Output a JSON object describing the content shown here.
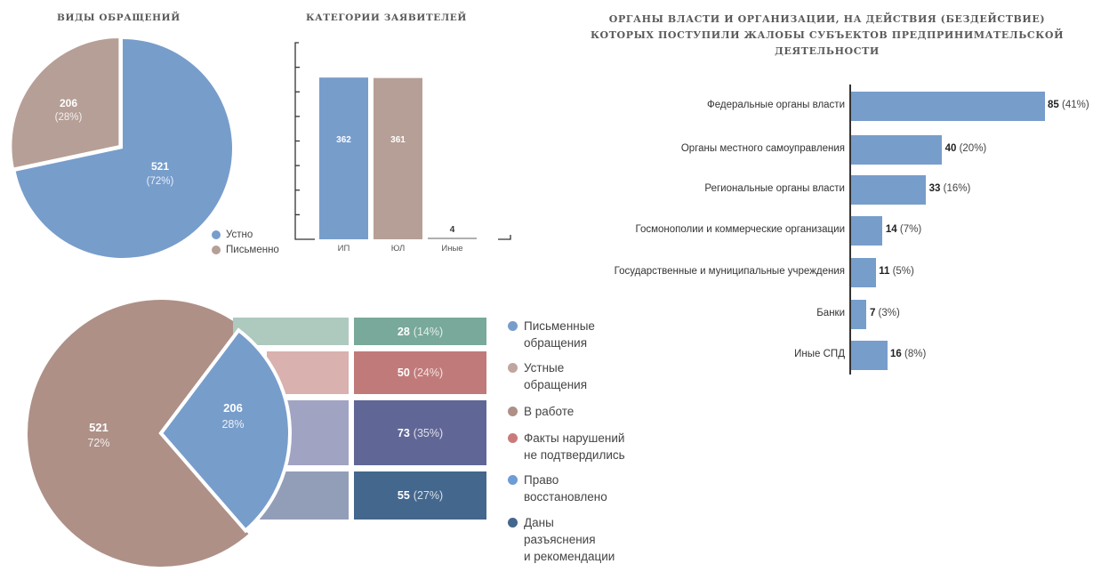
{
  "chart_data": [
    {
      "id": "types",
      "type": "pie",
      "title": "ВИДЫ ОБРАЩЕНИЙ",
      "slices": [
        {
          "label": "Устно",
          "value": 521,
          "pct_label": "(72%)",
          "color": "#779dcb"
        },
        {
          "label": "Письменно",
          "value": 206,
          "pct_label": "(28%)",
          "color": "#b69f96"
        }
      ],
      "legend_position": "bottom-right"
    },
    {
      "id": "applicants",
      "type": "bar",
      "title": "КАТЕГОРИИ ЗАЯВИТЕЛЕЙ",
      "categories": [
        "ИП",
        "ЮЛ",
        "Иные"
      ],
      "values": [
        362,
        361,
        4
      ],
      "colors": [
        "#779dcb",
        "#b69f96",
        "#b0b0b0"
      ],
      "ylim": [
        0,
        440
      ],
      "y_ticks": 8,
      "grid": false
    },
    {
      "id": "authorities",
      "type": "bar",
      "orientation": "horizontal",
      "title": "ОРГАНЫ ВЛАСТИ И ОРГАНИЗАЦИИ, НА ДЕЙСТВИЯ (БЕЗДЕЙСТВИЕ) КОТОРЫХ ПОСТУПИЛИ ЖАЛОБЫ СУБЪЕКТОВ ПРЕДПРИНИМАТЕЛЬСКОЙ ДЕЯТЕЛЬНОСТИ",
      "title_lines": [
        "ОРГАНЫ ВЛАСТИ И ОРГАНИЗАЦИИ, НА ДЕЙСТВИЯ (БЕЗДЕЙСТВИЕ)",
        "КОТОРЫХ ПОСТУПИЛИ ЖАЛОБЫ СУБЪЕКТОВ ПРЕДПРИНИМАТЕЛЬСКОЙ",
        "ДЕЯТЕЛЬНОСТИ"
      ],
      "categories": [
        "Федеральные органы власти",
        "Органы местного самоуправления",
        "Региональные органы власти",
        "Госмонополии и коммерческие организации",
        "Государственные и муниципальные учреждения",
        "Банки",
        "Иные СПД"
      ],
      "values": [
        85,
        40,
        33,
        14,
        11,
        7,
        16
      ],
      "pct_labels": [
        "(41%)",
        "(20%)",
        "(16%)",
        "(7%)",
        "(5%)",
        "(3%)",
        "(8%)"
      ],
      "color": "#779dcb"
    },
    {
      "id": "outcomes",
      "type": "pie",
      "subtype": "pie-of-bar",
      "slices": [
        {
          "label": "Устные обращения",
          "value": 521,
          "pct_label": "72%",
          "color": "#ae9087"
        },
        {
          "label": "Письменные обращения",
          "value": 206,
          "pct_label": "28%",
          "color": "#779dcb"
        }
      ],
      "breakdown": [
        {
          "label": "В работе",
          "value": 28,
          "pct_label": "(14%)",
          "color": "#78a99a",
          "light": "#aec9be"
        },
        {
          "label": "Факты нарушений не подтвердились",
          "value": 50,
          "pct_label": "(24%)",
          "color": "#c17a7a",
          "light": "#d9b1ae"
        },
        {
          "label": "Право восстановлено",
          "value": 73,
          "pct_label": "(35%)",
          "color": "#606796",
          "light": "#a1a3c2"
        },
        {
          "label": "Даны разъяснения и рекомендации",
          "value": 55,
          "pct_label": "(27%)",
          "color": "#44678d",
          "light": "#929eb8"
        }
      ],
      "legend": [
        {
          "lines": [
            "Письменные",
            "обращения"
          ],
          "color": "#779dcb"
        },
        {
          "lines": [
            "Устные",
            "обращения"
          ],
          "color": "#c0a69e"
        },
        {
          "lines": [
            "В работе"
          ],
          "color": "#ae9087"
        },
        {
          "lines": [
            "Факты нарушений",
            "не подтвердились"
          ],
          "color": "#c97b7b"
        },
        {
          "lines": [
            "Право",
            "восстановлено"
          ],
          "color": "#6e9cd6"
        },
        {
          "lines": [
            "Даны",
            "разъяснения",
            "и рекомендации"
          ],
          "color": "#44678d"
        }
      ]
    }
  ]
}
